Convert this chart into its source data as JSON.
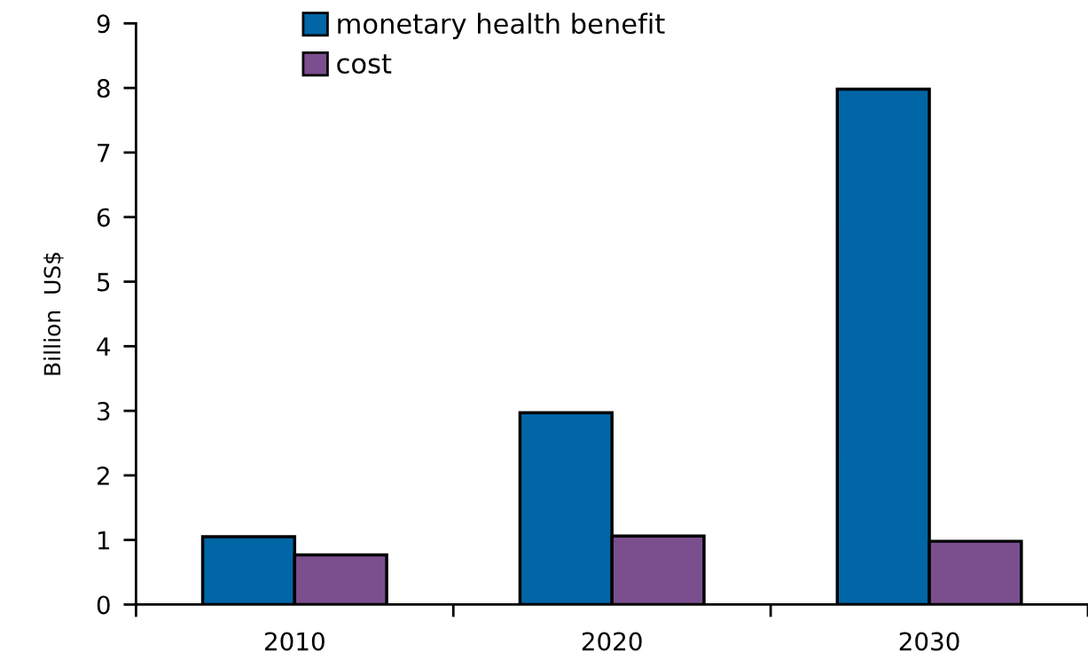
{
  "chart_data": {
    "type": "bar",
    "ylabel": "Billion  US$",
    "categories": [
      "2010",
      "2020",
      "2030"
    ],
    "series": [
      {
        "name": "monetary health benefit",
        "color": "#0066a6",
        "values": [
          1.05,
          2.97,
          7.98
        ]
      },
      {
        "name": "cost",
        "color": "#7b4f8e",
        "values": [
          0.77,
          1.06,
          0.98
        ]
      }
    ],
    "ylim": [
      0,
      9
    ],
    "yticks": [
      0,
      1,
      2,
      3,
      4,
      5,
      6,
      7,
      8,
      9
    ],
    "grid": false,
    "legend": "top left"
  }
}
